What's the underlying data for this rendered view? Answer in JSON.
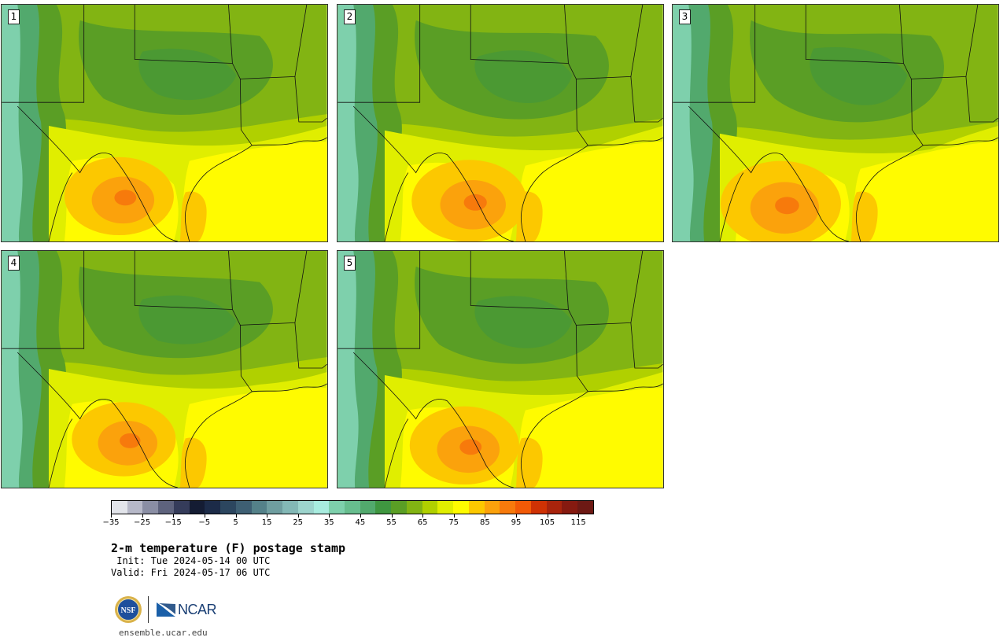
{
  "panels": [
    {
      "label": "1",
      "variant": 0
    },
    {
      "label": "2",
      "variant": 1
    },
    {
      "label": "3",
      "variant": 2
    },
    {
      "label": "4",
      "variant": 3
    },
    {
      "label": "5",
      "variant": 4
    }
  ],
  "colorbar": {
    "colors": [
      "#e2e4ea",
      "#b6b8c8",
      "#8a8ea4",
      "#5e637d",
      "#353c5a",
      "#141c33",
      "#1c2b48",
      "#2c465f",
      "#3e5f73",
      "#548189",
      "#6f9ea0",
      "#83b8b6",
      "#9dd4cd",
      "#a8ecdf",
      "#7ed0ac",
      "#67bd8e",
      "#52a96d",
      "#3f9640",
      "#5a9e25",
      "#82b413",
      "#b0d000",
      "#e0ee00",
      "#fffb00",
      "#fcc800",
      "#fba20c",
      "#f77a0c",
      "#f25a06",
      "#cf3204",
      "#a8240c",
      "#861a10",
      "#6d1914"
    ],
    "ticks": [
      "−35",
      "−25",
      "−15",
      "−5",
      "5",
      "15",
      "25",
      "35",
      "45",
      "55",
      "65",
      "75",
      "85",
      "95",
      "105",
      "115"
    ]
  },
  "title": "2-m temperature (F) postage stamp",
  "init_line": " Init: Tue 2024-05-14 00 UTC",
  "valid_line": "Valid: Fri 2024-05-17 06 UTC",
  "footer_url": "ensemble.ucar.edu",
  "logos": {
    "nsf": "NSF",
    "ncar": "NCAR"
  }
}
